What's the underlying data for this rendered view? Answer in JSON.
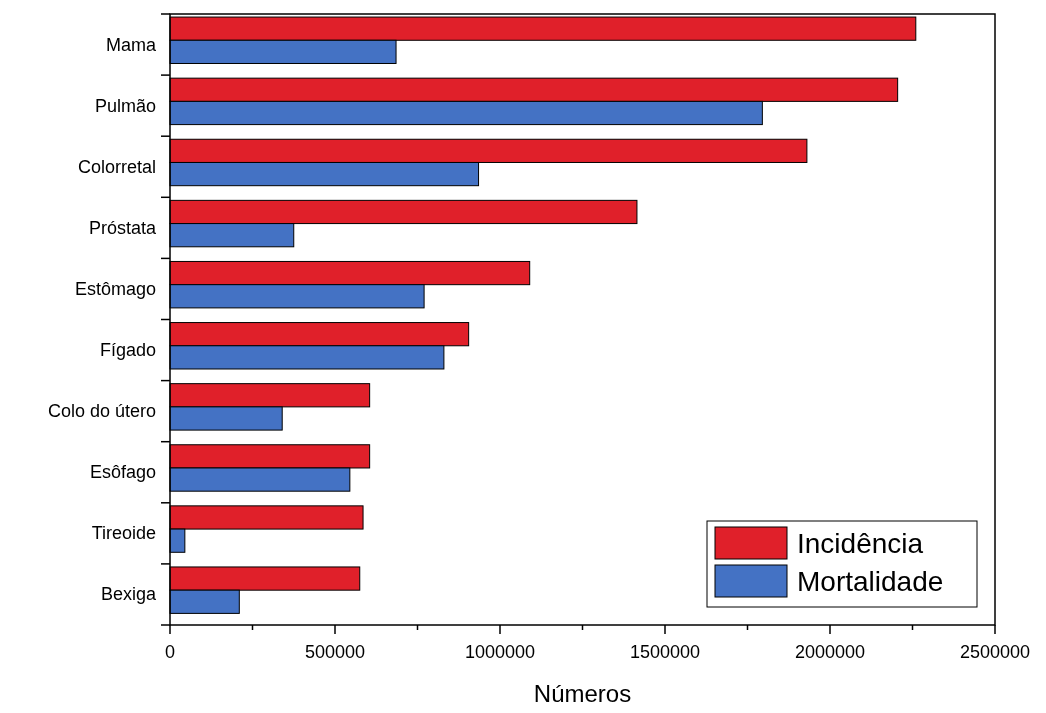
{
  "chart_data": {
    "type": "bar",
    "orientation": "horizontal",
    "xlabel": "Números",
    "categories": [
      "Mama",
      "Pulmão",
      "Colorretal",
      "Próstata",
      "Estômago",
      "Fígado",
      "Colo do útero",
      "Esôfago",
      "Tireoide",
      "Bexiga"
    ],
    "series": [
      {
        "name": "Incidência",
        "color": "#e0202a",
        "values": [
          2260000,
          2205000,
          1930000,
          1415000,
          1090000,
          905000,
          605000,
          605000,
          585000,
          575000
        ]
      },
      {
        "name": "Mortalidade",
        "color": "#4472c4",
        "values": [
          685000,
          1795000,
          935000,
          375000,
          770000,
          830000,
          340000,
          545000,
          45000,
          210000
        ]
      }
    ],
    "xlim": [
      0,
      2500000
    ],
    "xticks": [
      0,
      {
        "value": 250000,
        "label": null
      },
      500000,
      {
        "value": 750000,
        "label": null
      },
      1000000,
      {
        "value": 1250000,
        "label": null
      },
      1500000,
      {
        "value": 1750000,
        "label": null
      },
      2000000,
      {
        "value": 2250000,
        "label": null
      },
      2500000
    ],
    "legend": "bottom right",
    "grid": false
  }
}
